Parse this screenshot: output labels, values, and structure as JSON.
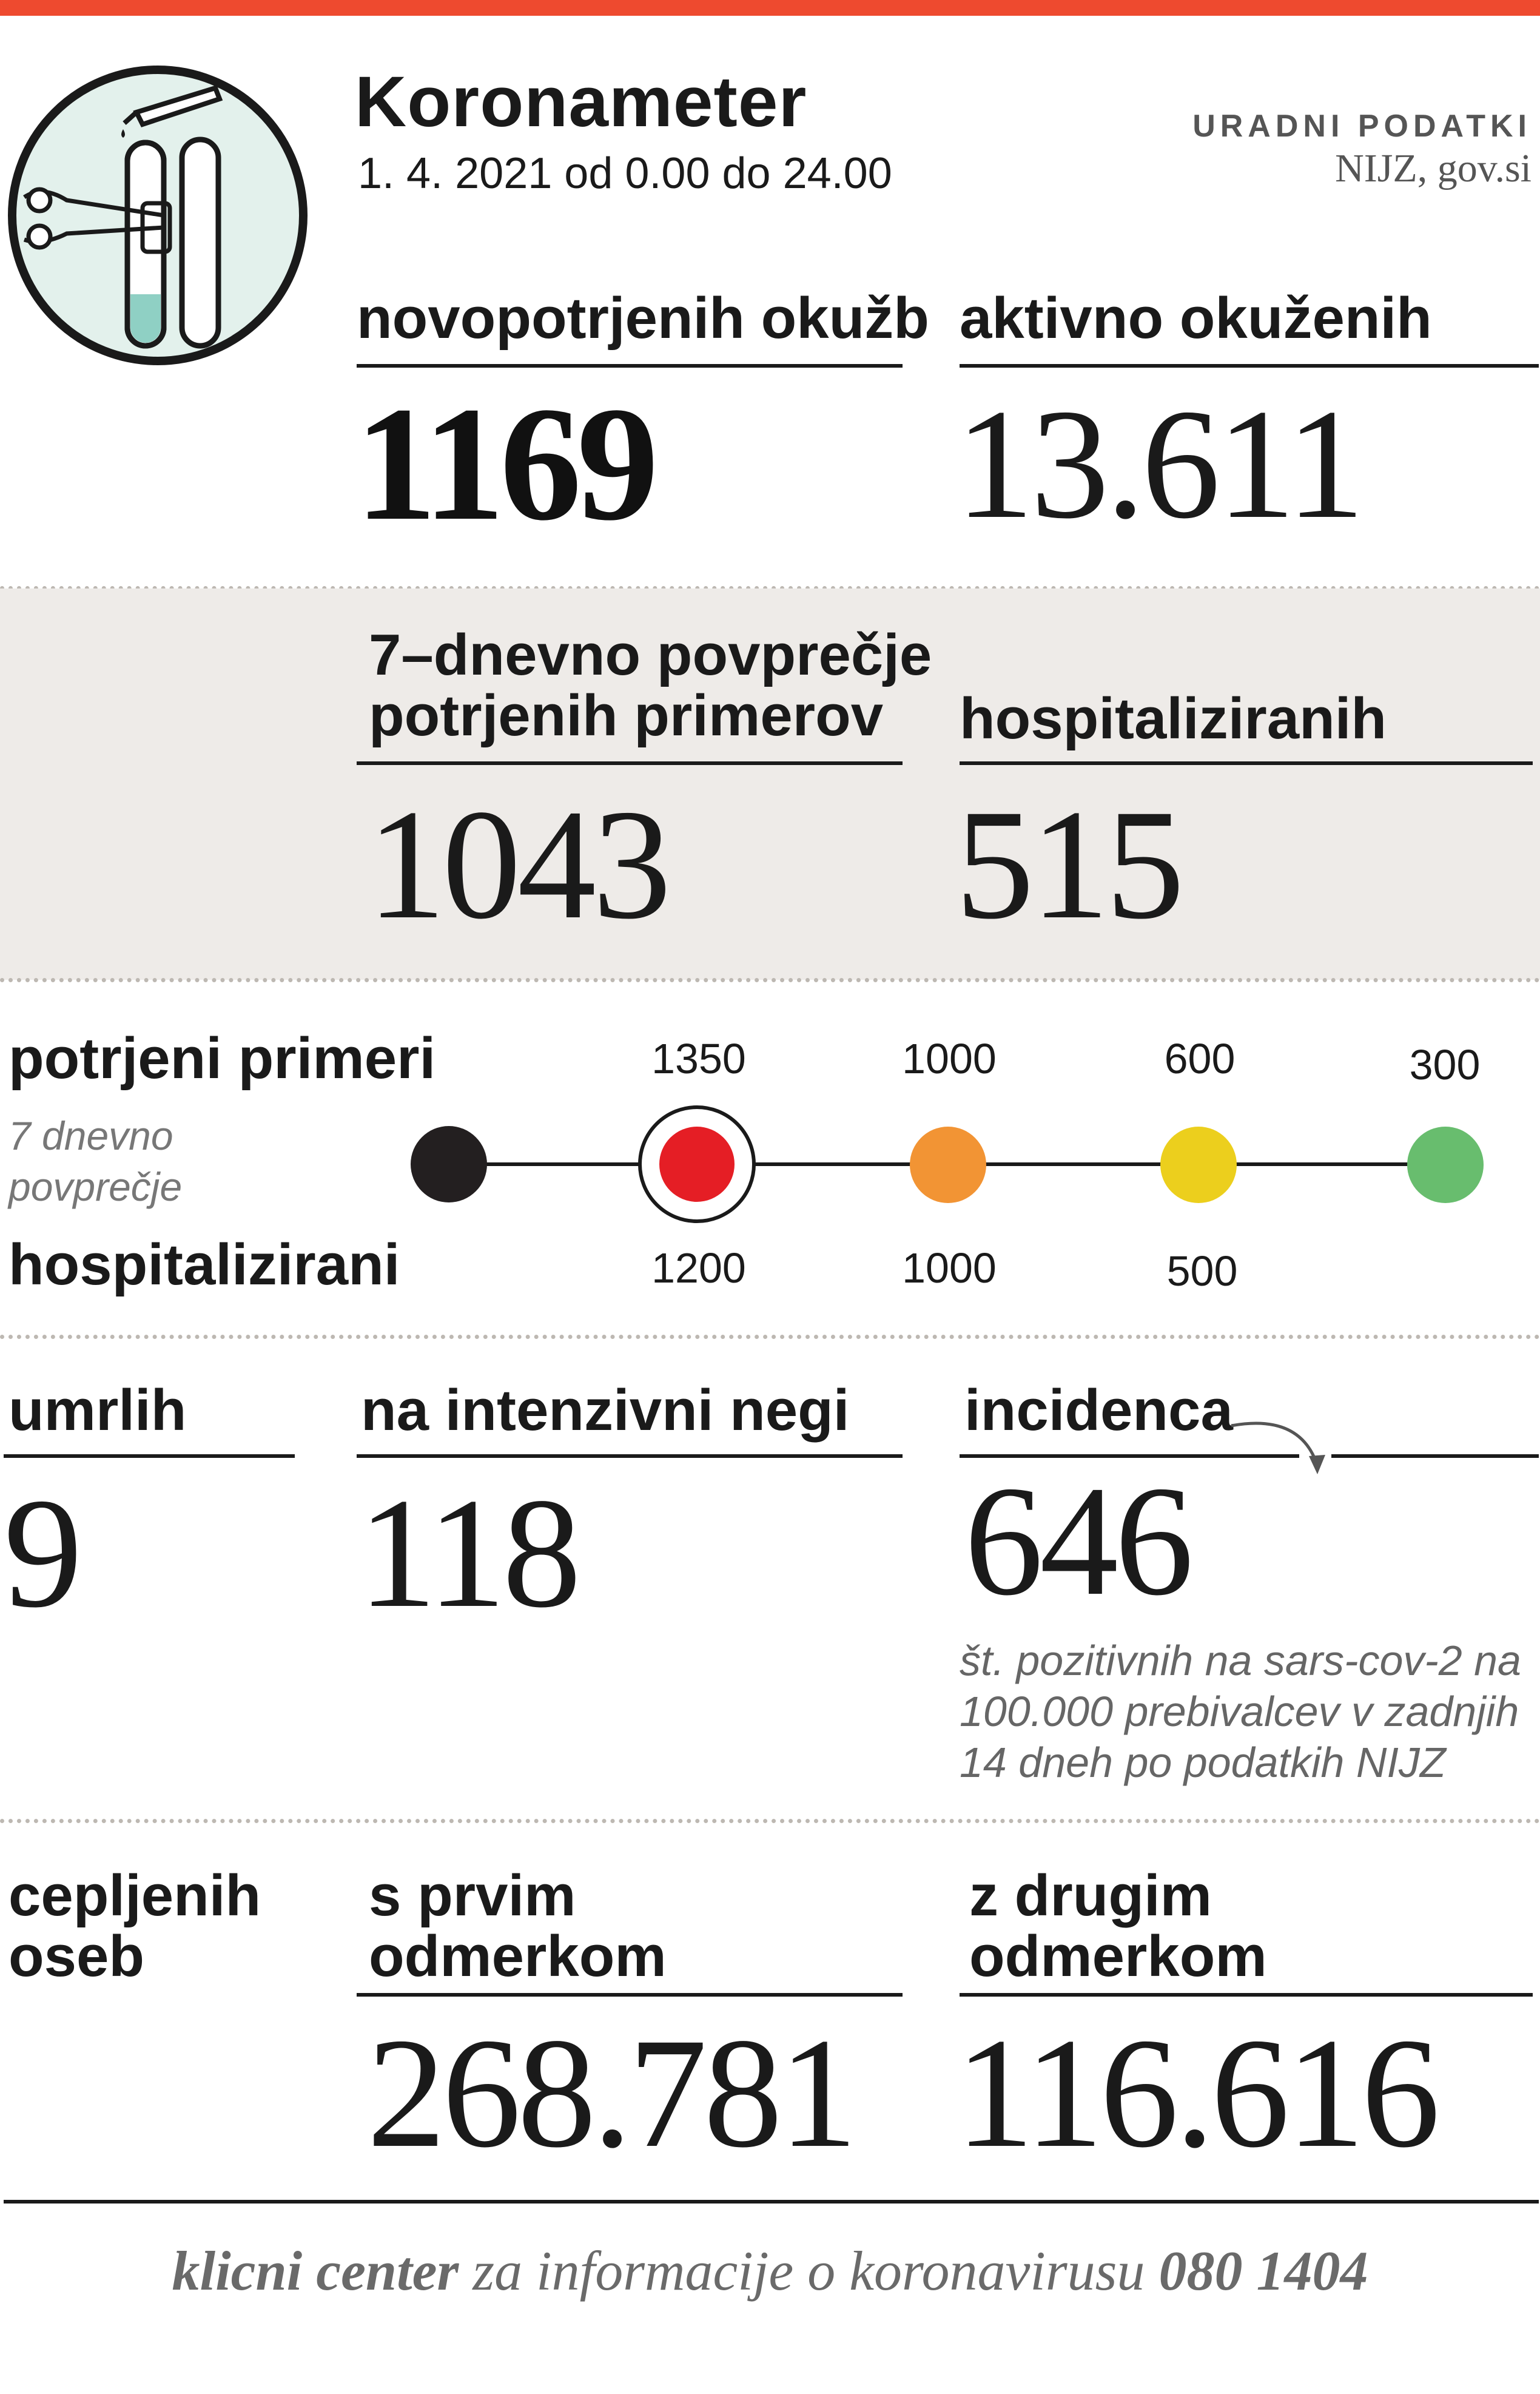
{
  "header": {
    "title": "Koronameter",
    "date": "1. 4. 2021 od 0.00 do 24.00",
    "source_label": "URADNI PODATKI",
    "source_text": "NIJZ, gov.si"
  },
  "stats_top": {
    "new_infections_label": "novopotrjenih okužb",
    "new_infections_value": "1169",
    "active_label": "aktivno okuženih",
    "active_value": "13.611"
  },
  "stats_band": {
    "avg7_label_line1": "7–dnevno povprečje",
    "avg7_label_line2": "potrjenih primerov",
    "avg7_value": "1043",
    "hospitalized_label": "hospitaliziranih",
    "hospitalized_value": "515"
  },
  "scale": {
    "cases_label": "potrjeni primeri",
    "cases_sub_line1": "7 dnevno",
    "cases_sub_line2": "povprečje",
    "hosp_label": "hospitalizirani",
    "thresholds_cases": [
      "1350",
      "1000",
      "600",
      "300"
    ],
    "thresholds_hosp": [
      "1200",
      "1000",
      "500"
    ],
    "colors": {
      "black": "#231f20",
      "red": "#e51e25",
      "orange": "#f29434",
      "yellow": "#eccf1d",
      "green": "#68bd6e"
    },
    "current_level": "red"
  },
  "stats_mid": {
    "deaths_label": "umrlih",
    "deaths_value": "9",
    "icu_label": "na intenzivni negi",
    "icu_value": "118",
    "incidence_label": "incidenca",
    "incidence_value": "646",
    "incidence_note_line1": "št. pozitivnih na sars-cov-2 na",
    "incidence_note_line2": "100.000 prebivalcev v zadnjih",
    "incidence_note_line3": "14 dneh po podatkih NIJZ"
  },
  "vaccination": {
    "label_line1": "cepljenih",
    "label_line2": "oseb",
    "first_label_line1": "s prvim",
    "first_label_line2": "odmerkom",
    "first_value": "268.781",
    "second_label_line1": "z drugim",
    "second_label_line2": "odmerkom",
    "second_value": "116.616"
  },
  "footer": {
    "bold_part": "klicni center",
    "middle_part": " za informacije o koronavirusu ",
    "phone": "080 1404"
  },
  "icons": {
    "logo": "test-tubes-icon",
    "arrow": "curved-arrow-icon"
  }
}
